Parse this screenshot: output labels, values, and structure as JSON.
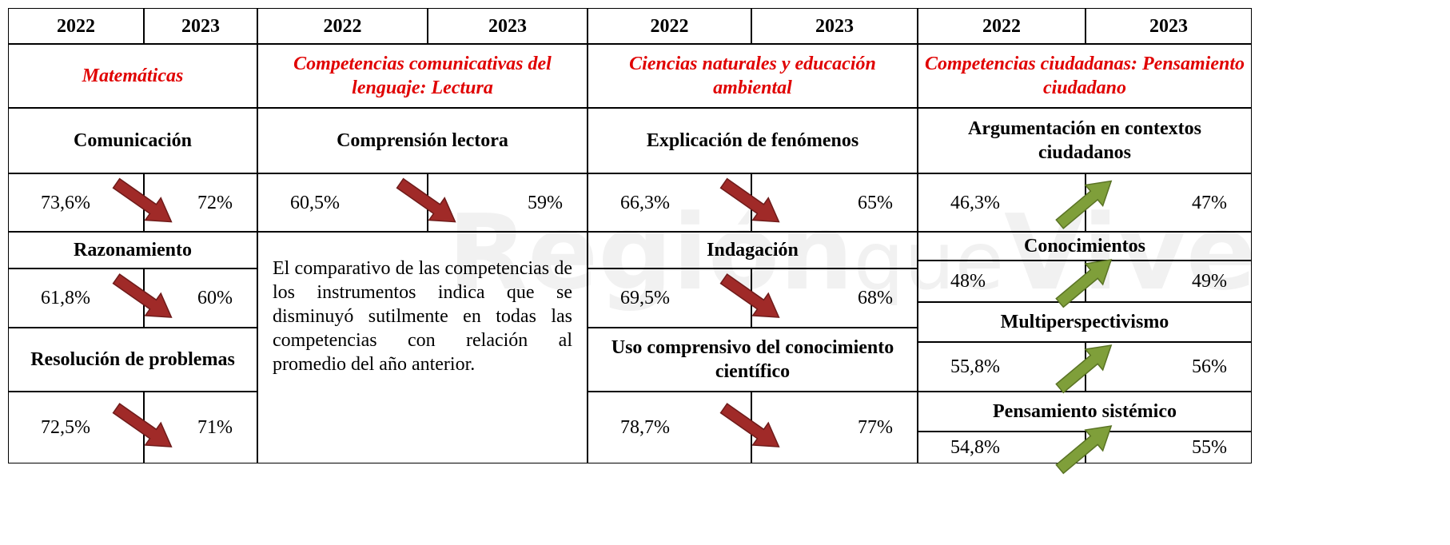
{
  "columns": [
    {
      "header": [
        "2022",
        "2023"
      ],
      "subject": "Matemáticas",
      "competencies": [
        {
          "name": "Comunicación",
          "values": [
            "73,6%",
            "72%"
          ]
        },
        {
          "name": "Razonamiento",
          "values": [
            "61,8%",
            "60%"
          ]
        },
        {
          "name": "Resolución de problemas",
          "values": [
            "72,5%",
            "71%"
          ]
        }
      ]
    },
    {
      "header": [
        "2022",
        "2023"
      ],
      "subject": "Competencias comunicativas del lenguaje: Lectura",
      "competencies": [
        {
          "name": "Comprensión lectora",
          "values": [
            "60,5%",
            "59%"
          ]
        }
      ],
      "note": "El comparativo de las competencias de los instrumentos indica que se disminuyó sutilmente en todas las competencias con relación al promedio del año anterior."
    },
    {
      "header": [
        "2022",
        "2023"
      ],
      "subject": "Ciencias naturales y educación ambiental",
      "competencies": [
        {
          "name": "Explicación de fenómenos",
          "values": [
            "66,3%",
            "65%"
          ]
        },
        {
          "name": "Indagación",
          "values": [
            "69,5%",
            "68%"
          ]
        },
        {
          "name": "Uso comprensivo del conocimiento científico",
          "values": [
            "78,7%",
            "77%"
          ]
        }
      ]
    },
    {
      "header": [
        "2022",
        "2023"
      ],
      "subject": "Competencias ciudadanas: Pensamiento ciudadano",
      "competencies": [
        {
          "name": "Argumentación en contextos ciudadanos",
          "values": [
            "46,3%",
            "47%"
          ]
        },
        {
          "name": "Conocimientos",
          "values": [
            "48%",
            "49%"
          ]
        },
        {
          "name": "Multiperspectivismo",
          "values": [
            "55,8%",
            "56%"
          ]
        },
        {
          "name": "Pensamiento sistémico",
          "values": [
            "54,8%",
            "55%"
          ]
        }
      ]
    }
  ],
  "watermark": [
    "Región",
    "que",
    "Vive"
  ]
}
